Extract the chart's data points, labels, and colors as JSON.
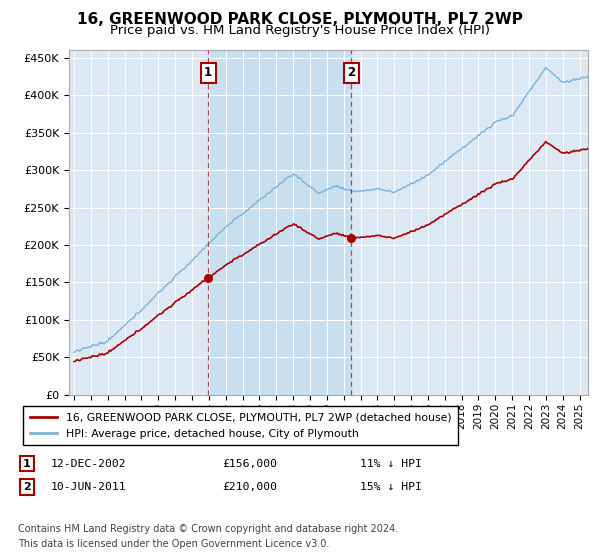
{
  "title": "16, GREENWOOD PARK CLOSE, PLYMOUTH, PL7 2WP",
  "subtitle": "Price paid vs. HM Land Registry's House Price Index (HPI)",
  "ylim": [
    0,
    460000
  ],
  "yticks": [
    0,
    50000,
    100000,
    150000,
    200000,
    250000,
    300000,
    350000,
    400000,
    450000
  ],
  "ytick_labels": [
    "£0",
    "£50K",
    "£100K",
    "£150K",
    "£200K",
    "£250K",
    "£300K",
    "£350K",
    "£400K",
    "£450K"
  ],
  "bg_color": "#dce9f5",
  "highlight_color": "#c8dff0",
  "hpi_color": "#7ab3d8",
  "price_color": "#aa0000",
  "sale1_year": 2002.958,
  "sale2_year": 2011.458,
  "sale1_price": 156000,
  "sale2_price": 210000,
  "legend_label1": "16, GREENWOOD PARK CLOSE, PLYMOUTH, PL7 2WP (detached house)",
  "legend_label2": "HPI: Average price, detached house, City of Plymouth",
  "footer_line1": "Contains HM Land Registry data © Crown copyright and database right 2024.",
  "footer_line2": "This data is licensed under the Open Government Licence v3.0.",
  "title_fontsize": 11,
  "subtitle_fontsize": 9.5,
  "xstart": 1995.0,
  "xend": 2025.5
}
